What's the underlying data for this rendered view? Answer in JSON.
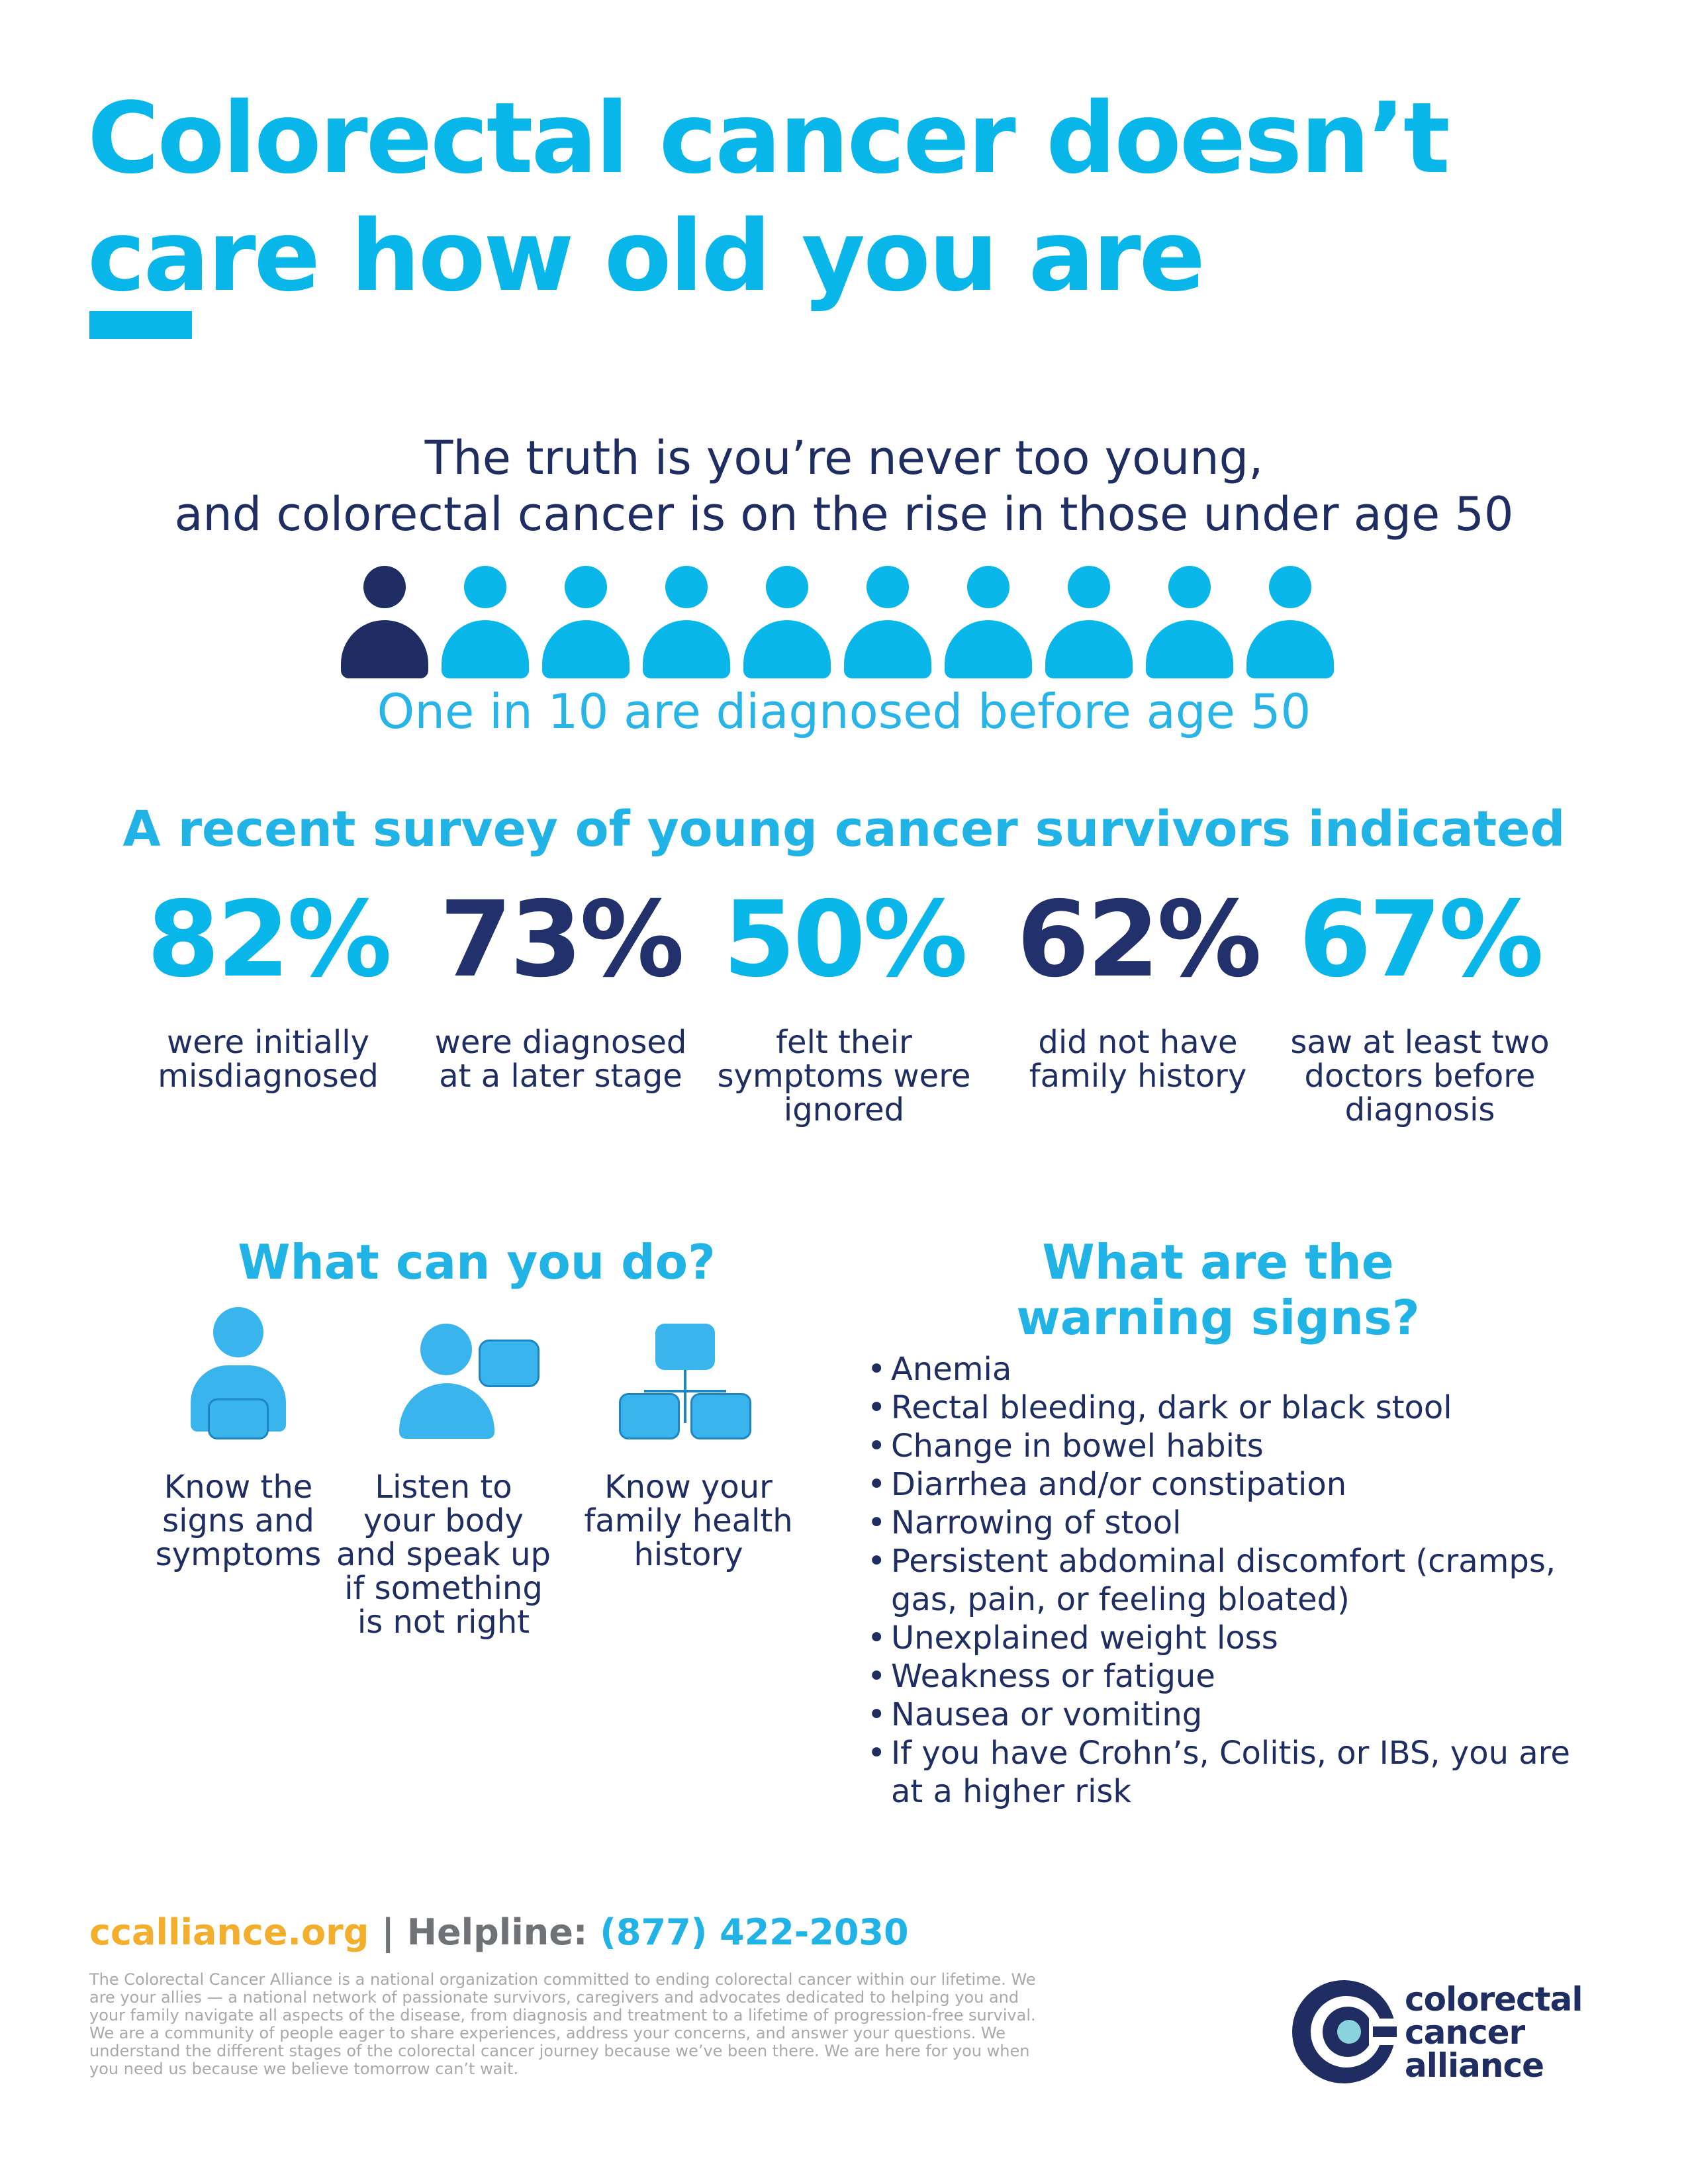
{
  "title": {
    "line1": "Colorectal cancer doesn’t",
    "line2": "care how old you are"
  },
  "truth": {
    "line1": "The truth is you’re never too young,",
    "line2": "and colorectal cancer is on the rise in those under age 50"
  },
  "people": {
    "highlighted": 1,
    "total": 10,
    "highlight_color": "#1f2d62",
    "base_color": "#09b6ea"
  },
  "one_in_ten": "One in 10 are diagnosed before age 50",
  "survey_heading": "A recent survey of young cancer survivors indicated",
  "stats": [
    {
      "pct": "82%",
      "desc": "were initially misdiagnosed",
      "color": "#09b6ea"
    },
    {
      "pct": "73%",
      "desc": "were diagnosed at a later stage",
      "color": "#22306b"
    },
    {
      "pct": "50%",
      "desc": "felt their symptoms were ignored",
      "color": "#09b6ea"
    },
    {
      "pct": "62%",
      "desc": "did not have family history",
      "color": "#22306b"
    },
    {
      "pct": "67%",
      "desc": "saw at least two doctors before diagnosis",
      "color": "#09b6ea"
    }
  ],
  "what_can_you_do": {
    "heading": "What can you do?",
    "tips": [
      {
        "icon": "person-with-clipboard-icon",
        "label": "Know the signs and symptoms"
      },
      {
        "icon": "person-speech-bubble-icon",
        "label": "Listen to your body and speak up if something is not right"
      },
      {
        "icon": "family-tree-icon",
        "label": "Know your family health history"
      }
    ]
  },
  "warning_signs": {
    "heading_line1": "What are the",
    "heading_line2": "warning signs?",
    "items": [
      "Anemia",
      "Rectal bleeding, dark or black stool",
      "Change in bowel habits",
      "Diarrhea and/or constipation",
      "Narrowing of stool",
      "Persistent abdominal discomfort (cramps, gas, pain, or feeling bloated)",
      "Unexplained weight loss",
      "Weakness or fatigue",
      "Nausea or vomiting",
      "If you have Crohn’s, Colitis, or IBS, you are at a higher risk"
    ]
  },
  "footer": {
    "website": "ccalliance.org",
    "separator": "|",
    "helpline_label": "Helpline:",
    "helpline_number": "(877) 422-2030",
    "website_color": "#f4ae2d",
    "paragraph": "The Colorectal Cancer Alliance is a national organization committed to ending colorectal cancer within our lifetime. We are your allies — a national network of passionate survivors, caregivers and advocates dedicated to helping you and your family navigate all aspects of the disease, from diagnosis and treatment to a lifetime of progression-free survival. We are a community of people eager to share experiences, address your concerns, and answer your questions. We understand the different stages of the colorectal cancer journey because we’ve been there. We are here for you when you need us because we believe tomorrow can’t wait."
  },
  "logo": {
    "line1": "colorectal",
    "line2": "cancer",
    "line3": "alliance",
    "icon": "cca-logo-icon"
  }
}
